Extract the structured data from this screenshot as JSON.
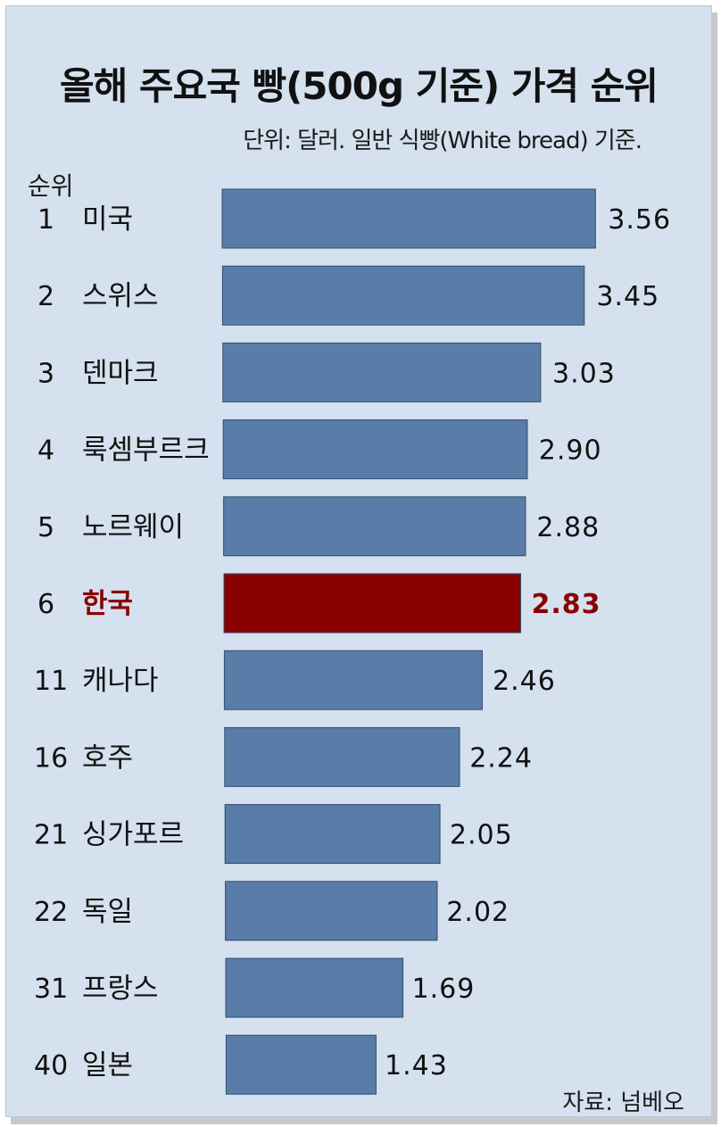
{
  "chart_data": {
    "type": "bar",
    "orientation": "horizontal",
    "title": "올해 주요국 빵(500g 기준) 가격 순위",
    "subtitle": "단위: 달러. 일반 식빵(White bread) 기준.",
    "rank_header": "순위",
    "source": "자료: 넘베오",
    "ranks": [
      "1",
      "2",
      "3",
      "4",
      "5",
      "6",
      "11",
      "16",
      "21",
      "22",
      "31",
      "40"
    ],
    "categories": [
      "미국",
      "스위스",
      "덴마크",
      "룩셈부르크",
      "노르웨이",
      "한국",
      "캐나다",
      "호주",
      "싱가포르",
      "독일",
      "프랑스",
      "일본"
    ],
    "values": [
      3.56,
      3.45,
      3.03,
      2.9,
      2.88,
      2.83,
      2.46,
      2.24,
      2.05,
      2.02,
      1.69,
      1.43
    ],
    "value_labels": [
      "3.56",
      "3.45",
      "3.03",
      "2.90",
      "2.88",
      "2.83",
      "2.46",
      "2.24",
      "2.05",
      "2.02",
      "1.69",
      "1.43"
    ],
    "highlight": "한국",
    "colors": {
      "bar": "#5a7ca8",
      "highlight_bar": "#8a0000",
      "highlight_text": "#8a0000",
      "background": "#d5e1ee"
    }
  }
}
